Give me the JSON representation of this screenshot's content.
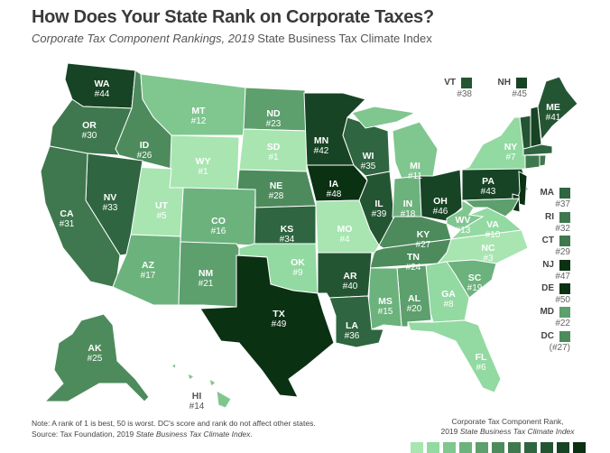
{
  "header": {
    "title": "How Does Your State Rank on Corporate Taxes?",
    "subtitle_italic": "Corporate Tax Component Rankings, 2019",
    "subtitle_rest": " State Business Tax Climate Index"
  },
  "states": {
    "WA": {
      "rank": 44,
      "label": "#44"
    },
    "OR": {
      "rank": 30,
      "label": "#30"
    },
    "CA": {
      "rank": 31,
      "label": "#31"
    },
    "NV": {
      "rank": 33,
      "label": "#33"
    },
    "ID": {
      "rank": 26,
      "label": "#26"
    },
    "MT": {
      "rank": 12,
      "label": "#12"
    },
    "WY": {
      "rank": 1,
      "label": "#1"
    },
    "UT": {
      "rank": 5,
      "label": "#5"
    },
    "AZ": {
      "rank": 17,
      "label": "#17"
    },
    "CO": {
      "rank": 16,
      "label": "#16"
    },
    "NM": {
      "rank": 21,
      "label": "#21"
    },
    "ND": {
      "rank": 23,
      "label": "#23"
    },
    "SD": {
      "rank": 1,
      "label": "#1"
    },
    "NE": {
      "rank": 28,
      "label": "#28"
    },
    "KS": {
      "rank": 34,
      "label": "#34"
    },
    "OK": {
      "rank": 9,
      "label": "#9"
    },
    "TX": {
      "rank": 49,
      "label": "#49"
    },
    "MN": {
      "rank": 42,
      "label": "#42"
    },
    "IA": {
      "rank": 48,
      "label": "#48"
    },
    "MO": {
      "rank": 4,
      "label": "#4"
    },
    "AR": {
      "rank": 40,
      "label": "#40"
    },
    "LA": {
      "rank": 36,
      "label": "#36"
    },
    "WI": {
      "rank": 35,
      "label": "#35"
    },
    "IL": {
      "rank": 39,
      "label": "#39"
    },
    "MI": {
      "rank": 11,
      "label": "#11"
    },
    "IN": {
      "rank": 18,
      "label": "#18"
    },
    "OH": {
      "rank": 46,
      "label": "#46"
    },
    "KY": {
      "rank": 27,
      "label": "#27"
    },
    "TN": {
      "rank": 24,
      "label": "#24"
    },
    "MS": {
      "rank": 15,
      "label": "#15"
    },
    "AL": {
      "rank": 20,
      "label": "#20"
    },
    "GA": {
      "rank": 8,
      "label": "#8"
    },
    "FL": {
      "rank": 6,
      "label": "#6"
    },
    "SC": {
      "rank": 19,
      "label": "#19"
    },
    "NC": {
      "rank": 3,
      "label": "#3"
    },
    "VA": {
      "rank": 10,
      "label": "#10"
    },
    "WV": {
      "rank": 13,
      "label": "#13"
    },
    "PA": {
      "rank": 43,
      "label": "#43"
    },
    "NY": {
      "rank": 7,
      "label": "#7"
    },
    "VT": {
      "rank": 38,
      "label": "#38"
    },
    "NH": {
      "rank": 45,
      "label": "#45"
    },
    "ME": {
      "rank": 41,
      "label": "#41"
    },
    "MA": {
      "rank": 37,
      "label": "#37"
    },
    "RI": {
      "rank": 32,
      "label": "#32"
    },
    "CT": {
      "rank": 29,
      "label": "#29"
    },
    "NJ": {
      "rank": 47,
      "label": "#47"
    },
    "DE": {
      "rank": 50,
      "label": "#50"
    },
    "MD": {
      "rank": 22,
      "label": "#22"
    },
    "DC": {
      "rank": 27,
      "label": "(#27)"
    },
    "AK": {
      "rank": 25,
      "label": "#25"
    },
    "HI": {
      "rank": 14,
      "label": "#14"
    }
  },
  "footer": {
    "note": "Note: A rank of 1 is best, 50 is worst. DC's score and rank do not affect other states.",
    "source_prefix": "Source: Tax Foundation, 2019 ",
    "source_italic": "State Business Tax Climate Index",
    "source_suffix": "."
  },
  "legend": {
    "caption_line1": "Corporate Tax Component Rank,",
    "caption_line2_prefix": "2019 ",
    "caption_line2_italic": "State Business Tax Climate Index",
    "colors": [
      "#a8e5b1",
      "#93d9a2",
      "#7fc68f",
      "#6cb27d",
      "#5d9f6d",
      "#4d8b5d",
      "#3f784e",
      "#2f6540",
      "#245533",
      "#174424",
      "#0b3113"
    ],
    "scale_low": 1,
    "scale_high": 50
  }
}
